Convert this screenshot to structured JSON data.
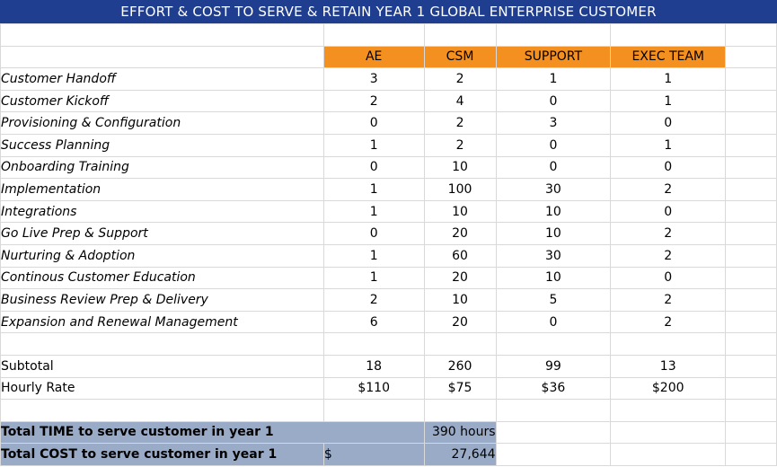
{
  "title": "EFFORT & COST TO SERVE & RETAIN YEAR 1 GLOBAL ENTERPRISE CUSTOMER",
  "columns": [
    "AE",
    "CSM",
    "SUPPORT",
    "EXEC TEAM"
  ],
  "rows": [
    {
      "label": "Customer Handoff",
      "values": [
        "3",
        "2",
        "1",
        "1"
      ]
    },
    {
      "label": "Customer Kickoff",
      "values": [
        "2",
        "4",
        "0",
        "1"
      ]
    },
    {
      "label": "Provisioning & Configuration",
      "values": [
        "0",
        "2",
        "3",
        "0"
      ]
    },
    {
      "label": "Success Planning",
      "values": [
        "1",
        "2",
        "0",
        "1"
      ]
    },
    {
      "label": "Onboarding Training",
      "values": [
        "0",
        "10",
        "0",
        "0"
      ]
    },
    {
      "label": "Implementation",
      "values": [
        "1",
        "100",
        "30",
        "2"
      ]
    },
    {
      "label": "Integrations",
      "values": [
        "1",
        "10",
        "10",
        "0"
      ]
    },
    {
      "label": "Go Live Prep & Support",
      "values": [
        "0",
        "20",
        "10",
        "2"
      ]
    },
    {
      "label": "Nurturing & Adoption",
      "values": [
        "1",
        "60",
        "30",
        "2"
      ]
    },
    {
      "label": "Continous Customer Education",
      "values": [
        "1",
        "20",
        "10",
        "0"
      ]
    },
    {
      "label": "Business Review Prep & Delivery",
      "values": [
        "2",
        "10",
        "5",
        "2"
      ]
    },
    {
      "label": "Expansion and Renewal Management",
      "values": [
        "6",
        "20",
        "0",
        "2"
      ]
    }
  ],
  "subtotal": {
    "label": "Subtotal",
    "values": [
      "18",
      "260",
      "99",
      "13"
    ]
  },
  "hourly_rate": {
    "label": "Hourly Rate",
    "values": [
      "$110",
      "$75",
      "$36",
      "$200"
    ]
  },
  "totals": {
    "time_label": "Total TIME to serve customer in year 1",
    "time_value": "390 hours",
    "cost_label": "Total COST to serve customer in year 1",
    "cost_currency": "$",
    "cost_value": "27,644"
  },
  "colors": {
    "title_bg": "#1f3e8f",
    "header_bg": "#f39020",
    "totals_bg": "#9aabc7",
    "grid": "#d9d9d9"
  }
}
